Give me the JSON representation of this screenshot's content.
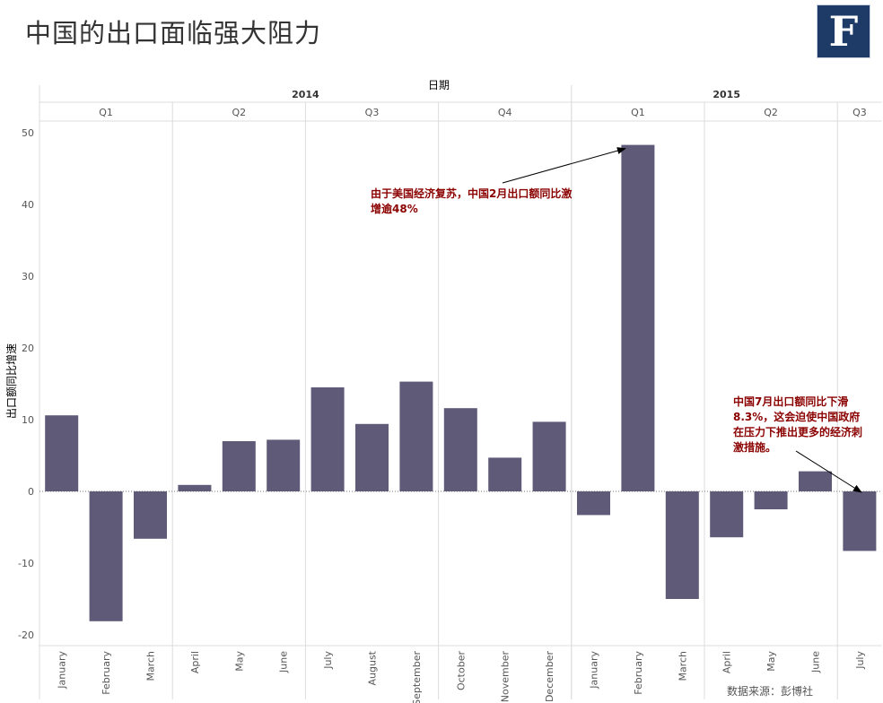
{
  "page_title": "中国的出口面临强大阻力",
  "logo_letter": "F",
  "source_text": "数据来源：彭博社",
  "colors": {
    "bar": "#5f5a77",
    "annotation": "#8b0000",
    "grid": "#dcdcdc",
    "axis_text": "#555555"
  },
  "chart_data": {
    "type": "bar",
    "xlabel": "日期",
    "ylabel": "出口额同比增速",
    "ylim": [
      -21,
      52
    ],
    "yticks": [
      50,
      40,
      30,
      20,
      10,
      0,
      -10,
      -20
    ],
    "grid": "vertical quarter separators",
    "years": [
      {
        "label": "2014",
        "months": 12
      },
      {
        "label": "2015",
        "months": 7
      }
    ],
    "quarters": [
      {
        "label": "Q1",
        "months": 3
      },
      {
        "label": "Q2",
        "months": 3
      },
      {
        "label": "Q3",
        "months": 3
      },
      {
        "label": "Q4",
        "months": 3
      },
      {
        "label": "Q1",
        "months": 3
      },
      {
        "label": "Q2",
        "months": 3
      },
      {
        "label": "Q3",
        "months": 1
      }
    ],
    "categories": [
      "January",
      "February",
      "March",
      "April",
      "May",
      "June",
      "July",
      "August",
      "September",
      "October",
      "November",
      "December",
      "January",
      "February",
      "March",
      "April",
      "May",
      "June",
      "July"
    ],
    "values": [
      10.6,
      -18.1,
      -6.6,
      0.9,
      7.0,
      7.2,
      14.5,
      9.4,
      15.3,
      11.6,
      4.7,
      9.7,
      -3.3,
      48.3,
      -15.0,
      -6.4,
      -2.5,
      2.8,
      -8.3
    ],
    "annotations": [
      {
        "text": "由于美国经济复苏，中国2月出口额同比激增逾48%",
        "lines": [
          "由于美国经济复苏，中国2月出口额同比激",
          "增逾48%"
        ],
        "target_index": 13
      },
      {
        "text": "中国7月出口额同比下滑8.3%，这会迫使中国政府在压力下推出更多的经济刺激措施。",
        "lines": [
          "中国7月出口额同比下滑",
          "8.3%，这会迫使中国政府",
          "在压力下推出更多的经济刺",
          "激措施。"
        ],
        "target_index": 18
      }
    ]
  }
}
